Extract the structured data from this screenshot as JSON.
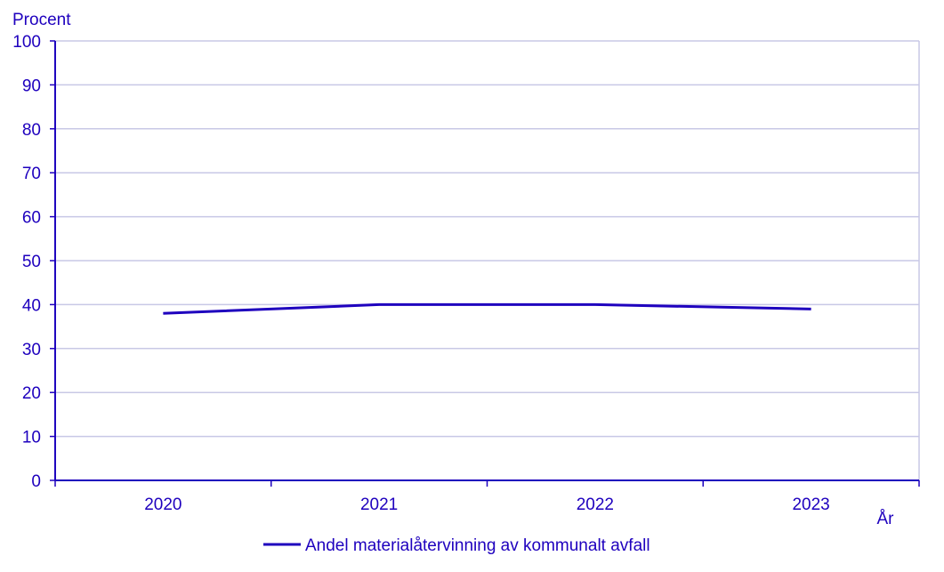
{
  "chart_data": {
    "type": "line",
    "ylabel": "Procent",
    "xlabel": "År",
    "categories": [
      "2020",
      "2021",
      "2022",
      "2023"
    ],
    "series": [
      {
        "name": "Andel materialåtervinning av kommunalt avfall",
        "values": [
          38,
          40,
          40,
          39
        ]
      }
    ],
    "ylim": [
      0,
      100
    ],
    "yticks": [
      0,
      10,
      20,
      30,
      40,
      50,
      60,
      70,
      80,
      90,
      100
    ],
    "grid": "horizontal",
    "legend": "bottom-center"
  },
  "colors": {
    "text": "#1e00be",
    "line": "#1e00be",
    "grid": "#c8c8e6",
    "axis": "#1e00be"
  }
}
